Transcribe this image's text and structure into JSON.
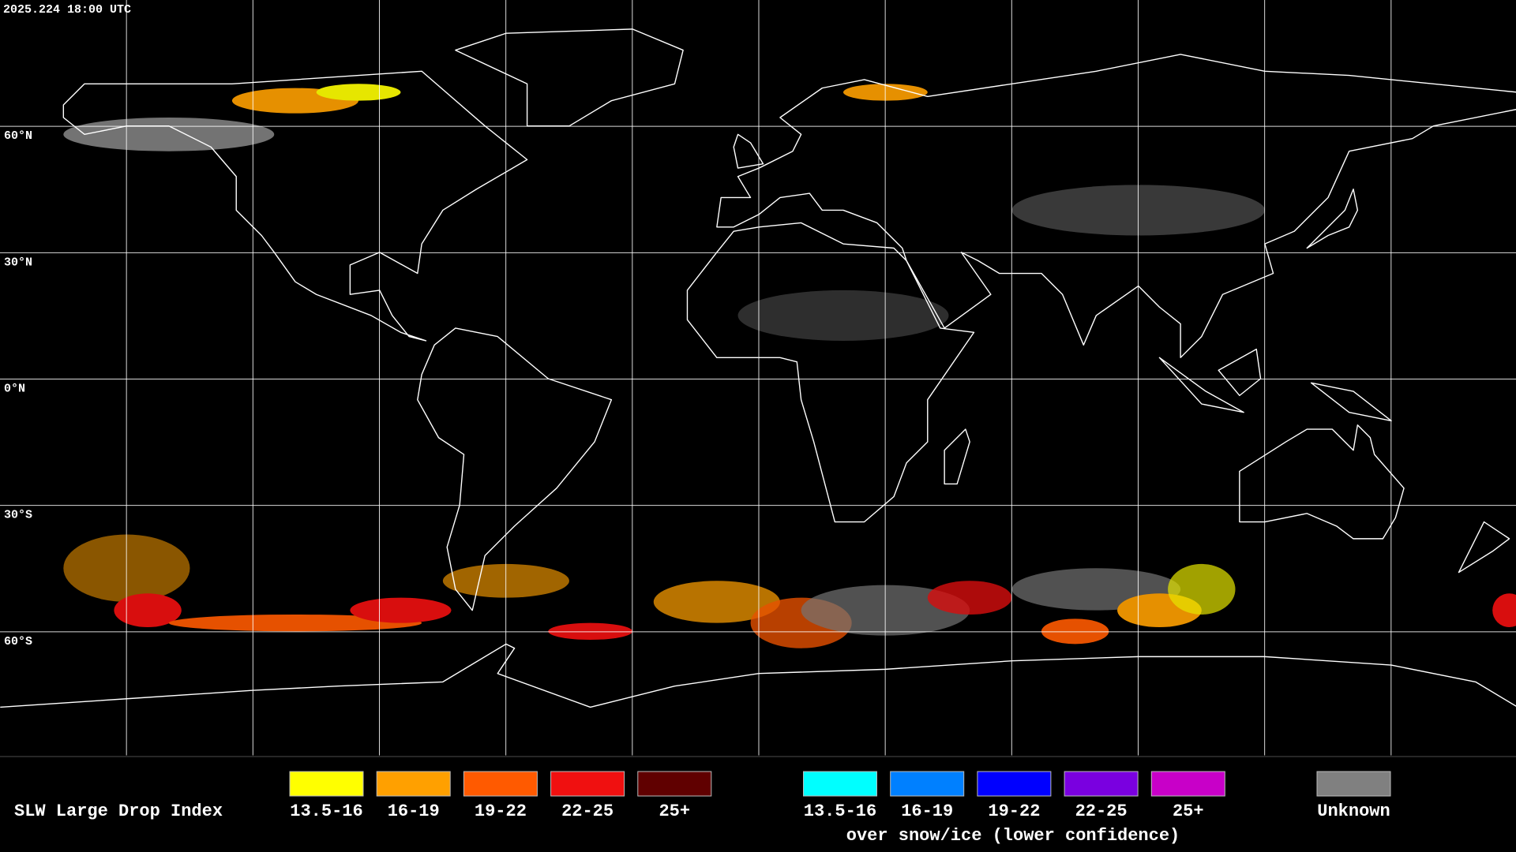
{
  "timestamp": "2025.224 18:00 UTC",
  "grid_labels": [
    "60°N",
    "30°N",
    "0°N",
    "30°S",
    "60°S"
  ],
  "legend": {
    "title": "SLW Large Drop Index",
    "groups": [
      {
        "items": [
          {
            "label": "13.5-16",
            "color": "#ffff00"
          },
          {
            "label": "16-19",
            "color": "#ffa000"
          },
          {
            "label": "19-22",
            "color": "#ff5a00"
          },
          {
            "label": "22-25",
            "color": "#f01010"
          },
          {
            "label": "25+",
            "color": "#600000"
          }
        ]
      },
      {
        "items": [
          {
            "label": "13.5-16",
            "color": "#00ffff"
          },
          {
            "label": "16-19",
            "color": "#0080ff"
          },
          {
            "label": "19-22",
            "color": "#0000ff"
          },
          {
            "label": "22-25",
            "color": "#7a00e0"
          },
          {
            "label": "25+",
            "color": "#c800c8"
          }
        ],
        "caption": "over snow/ice (lower confidence)"
      }
    ],
    "unknown": {
      "label": "Unknown",
      "color": "#808080"
    }
  }
}
